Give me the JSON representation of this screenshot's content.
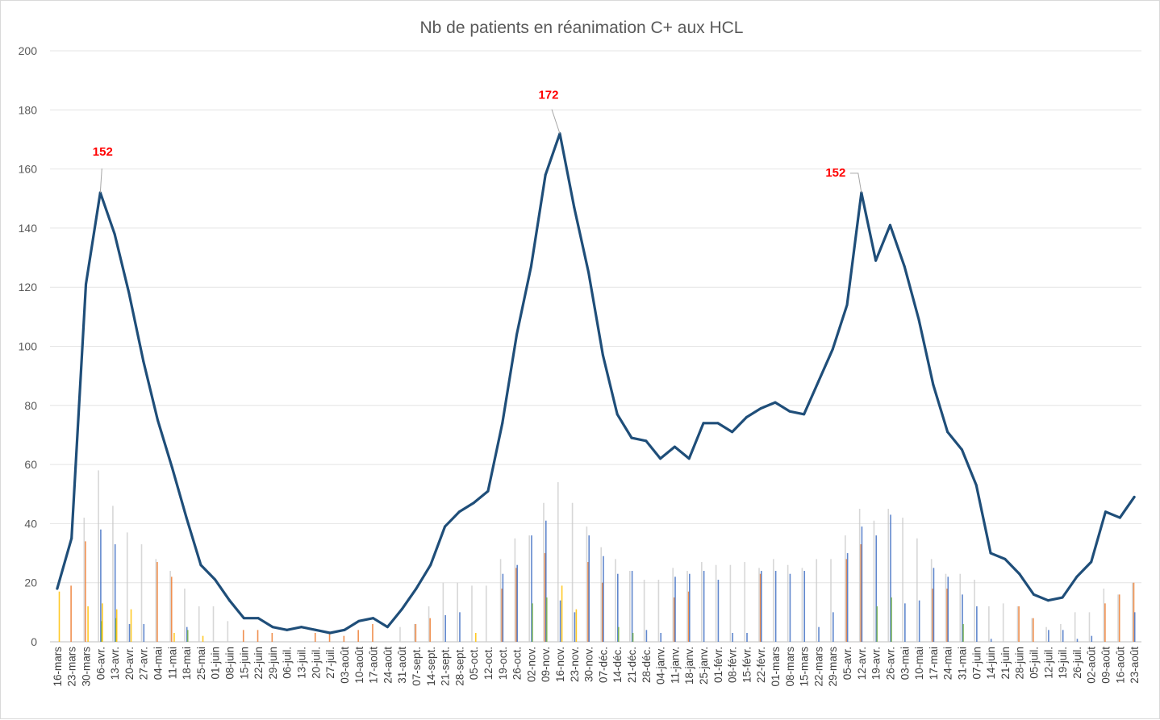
{
  "chart_data": {
    "type": "line",
    "title": "Nb de patients en réanimation C+ aux HCL",
    "xlabel": "",
    "ylabel": "",
    "ylim": [
      0,
      200
    ],
    "yticks": [
      0,
      20,
      40,
      60,
      80,
      100,
      120,
      140,
      160,
      180,
      200
    ],
    "grid": true,
    "legend": "none",
    "categories": [
      "16-mars",
      "23-mars",
      "30-mars",
      "06-avr.",
      "13-avr.",
      "20-avr.",
      "27-avr.",
      "04-mai",
      "11-mai",
      "18-mai",
      "25-mai",
      "01-juin",
      "08-juin",
      "15-juin",
      "22-juin",
      "29-juin",
      "06-juil.",
      "13-juil.",
      "20-juil.",
      "27-juil.",
      "03-août",
      "10-août",
      "17-août",
      "24-août",
      "31-août",
      "07-sept.",
      "14-sept.",
      "21-sept.",
      "28-sept.",
      "05-oct.",
      "12-oct.",
      "19-oct.",
      "26-oct.",
      "02-nov.",
      "09-nov.",
      "16-nov.",
      "23-nov.",
      "30-nov.",
      "07-déc.",
      "14-déc.",
      "21-déc.",
      "28-déc.",
      "04-janv.",
      "11-janv.",
      "18-janv.",
      "25-janv.",
      "01-févr.",
      "08-févr.",
      "15-févr.",
      "22-févr.",
      "01-mars",
      "08-mars",
      "15-mars",
      "22-mars",
      "29-mars",
      "05-avr.",
      "12-avr.",
      "19-avr.",
      "26-avr.",
      "03-mai",
      "10-mai",
      "17-mai",
      "24-mai",
      "31-mai",
      "07-juin",
      "14-juin",
      "21-juin",
      "28-juin",
      "05-juil.",
      "12-juil.",
      "19-juil.",
      "26-juil.",
      "02-août",
      "09-août",
      "16-août",
      "23-août"
    ],
    "series": [
      {
        "name": "Nb de patients en réanimation",
        "color": "#1f4e79",
        "values": [
          18,
          35,
          121,
          152,
          138,
          118,
          95,
          75,
          59,
          42,
          26,
          21,
          14,
          8,
          8,
          5,
          4,
          5,
          4,
          3,
          4,
          7,
          8,
          5,
          11,
          18,
          26,
          39,
          44,
          47,
          51,
          74,
          104,
          127,
          158,
          172,
          147,
          125,
          97,
          77,
          69,
          68,
          62,
          66,
          62,
          74,
          74,
          71,
          76,
          79,
          81,
          78,
          77,
          88,
          99,
          114,
          152,
          129,
          141,
          127,
          109,
          87,
          71,
          65,
          53,
          30,
          28,
          23,
          16,
          14,
          15,
          22,
          27,
          44,
          42,
          49
        ]
      }
    ],
    "background_bars": {
      "series": [
        {
          "name": "gris",
          "color": "#c9c9c9",
          "values": [
            0,
            0,
            42,
            58,
            46,
            37,
            33,
            28,
            24,
            18,
            12,
            12,
            7,
            0,
            0,
            0,
            0,
            0,
            0,
            0,
            0,
            0,
            0,
            0,
            5,
            6,
            12,
            20,
            20,
            19,
            19,
            28,
            35,
            36,
            47,
            54,
            47,
            39,
            32,
            28,
            24,
            21,
            21,
            25,
            24,
            27,
            26,
            26,
            27,
            25,
            28,
            26,
            25,
            28,
            28,
            36,
            45,
            41,
            45,
            42,
            35,
            28,
            23,
            23,
            21,
            12,
            13,
            12,
            8,
            5,
            6,
            10,
            10,
            18,
            16,
            20
          ]
        },
        {
          "name": "orange",
          "color": "#ed7d31",
          "values": [
            0,
            19,
            34,
            0,
            0,
            0,
            0,
            27,
            22,
            0,
            0,
            0,
            0,
            4,
            4,
            3,
            0,
            0,
            3,
            3,
            2,
            4,
            6,
            0,
            0,
            6,
            8,
            0,
            0,
            0,
            0,
            18,
            25,
            0,
            30,
            0,
            0,
            27,
            20,
            0,
            0,
            0,
            0,
            15,
            17,
            0,
            0,
            0,
            0,
            23,
            0,
            0,
            0,
            0,
            0,
            28,
            33,
            0,
            0,
            0,
            0,
            18,
            18,
            0,
            0,
            0,
            0,
            12,
            8,
            0,
            0,
            0,
            0,
            13,
            16,
            20
          ]
        },
        {
          "name": "bleu",
          "color": "#4472c4",
          "values": [
            0,
            0,
            0,
            38,
            33,
            6,
            6,
            0,
            0,
            5,
            0,
            0,
            0,
            0,
            0,
            0,
            0,
            0,
            0,
            0,
            0,
            0,
            0,
            0,
            0,
            0,
            0,
            9,
            10,
            0,
            0,
            23,
            26,
            36,
            41,
            14,
            10,
            36,
            29,
            23,
            24,
            4,
            3,
            22,
            23,
            24,
            21,
            3,
            3,
            24,
            24,
            23,
            24,
            5,
            10,
            30,
            39,
            36,
            43,
            13,
            14,
            25,
            22,
            16,
            12,
            1,
            0,
            0,
            0,
            4,
            4,
            1,
            2,
            0,
            0,
            10
          ]
        },
        {
          "name": "vert",
          "color": "#70ad47",
          "values": [
            0,
            0,
            0,
            7,
            8,
            0,
            0,
            0,
            0,
            4,
            0,
            0,
            0,
            0,
            0,
            0,
            0,
            0,
            0,
            0,
            0,
            0,
            0,
            0,
            0,
            0,
            0,
            0,
            0,
            0,
            0,
            0,
            0,
            13,
            15,
            0,
            0,
            0,
            0,
            5,
            3,
            0,
            0,
            0,
            0,
            0,
            0,
            0,
            0,
            0,
            0,
            0,
            0,
            0,
            0,
            0,
            0,
            12,
            15,
            0,
            0,
            0,
            0,
            6,
            0,
            0,
            0,
            0,
            0,
            0,
            0,
            0,
            0,
            0,
            0,
            0
          ]
        },
        {
          "name": "jaune",
          "color": "#ffc000",
          "values": [
            17,
            0,
            12,
            13,
            11,
            11,
            0,
            0,
            3,
            0,
            2,
            0,
            0,
            0,
            0,
            0,
            0,
            0,
            0,
            0,
            0,
            0,
            0,
            0,
            0,
            0,
            0,
            0,
            0,
            3,
            0,
            0,
            0,
            0,
            0,
            19,
            11,
            0,
            0,
            0,
            0,
            0,
            0,
            0,
            0,
            0,
            0,
            0,
            0,
            0,
            0,
            0,
            0,
            0,
            0,
            0,
            0,
            0,
            0,
            0,
            0,
            0,
            0,
            0,
            0,
            0,
            0,
            0,
            0,
            0,
            0,
            0,
            0,
            0,
            0,
            0
          ]
        }
      ]
    },
    "peak_labels": [
      {
        "index": 3,
        "text": "152"
      },
      {
        "index": 35,
        "text": "172"
      },
      {
        "index": 56,
        "text": "152"
      }
    ]
  }
}
